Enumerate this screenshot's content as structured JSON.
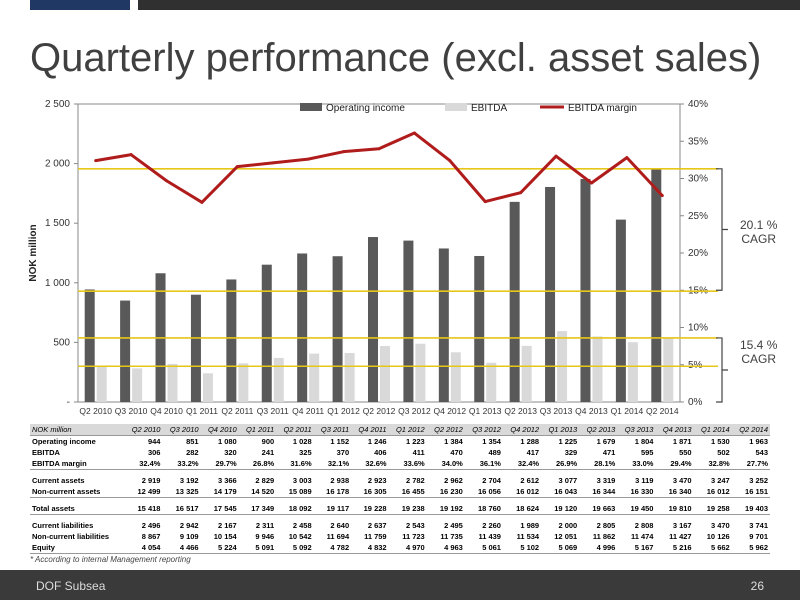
{
  "slide": {
    "title": "Quarterly performance (excl. asset sales)",
    "footnote": "* According to internal Management reporting",
    "company": "DOF Subsea",
    "page_number": "26"
  },
  "colors": {
    "operating_income": "#595959",
    "ebitda": "#d9d9d9",
    "ebitda_margin": "#b01c1c",
    "ref_line": "#e6c619"
  },
  "annotations": {
    "cagr_ebitda": [
      "20.1 %",
      "CAGR"
    ],
    "cagr_op": [
      "15.4 %",
      "CAGR"
    ]
  },
  "chart_data": {
    "type": "bar",
    "ylabel": "NOK million",
    "ylim": [
      0,
      2500
    ],
    "y2lim": [
      0,
      40
    ],
    "yticks": [
      "-",
      "500",
      "1 000",
      "1 500",
      "2 000",
      "2 500"
    ],
    "y2ticks": [
      "0%",
      "5%",
      "10%",
      "15%",
      "20%",
      "25%",
      "30%",
      "35%",
      "40%"
    ],
    "legend_position": "top",
    "categories": [
      "Q2 2010",
      "Q3 2010",
      "Q4 2010",
      "Q1 2011",
      "Q2 2011",
      "Q3 2011",
      "Q4 2011",
      "Q1 2012",
      "Q2 2012",
      "Q3 2012",
      "Q4 2012",
      "Q1 2013",
      "Q2 2013",
      "Q3 2013",
      "Q4 2013",
      "Q1 2014",
      "Q2 2014"
    ],
    "series": [
      {
        "name": "Operating income",
        "type": "bar",
        "values": [
          944,
          851,
          1080,
          900,
          1028,
          1152,
          1246,
          1223,
          1384,
          1354,
          1288,
          1225,
          1679,
          1804,
          1871,
          1530,
          1963
        ]
      },
      {
        "name": "EBITDA",
        "type": "bar",
        "values": [
          306,
          282,
          320,
          241,
          325,
          370,
          406,
          411,
          470,
          489,
          417,
          329,
          471,
          595,
          550,
          502,
          543
        ]
      },
      {
        "name": "EBITDA margin",
        "type": "line",
        "axis": "right",
        "values": [
          32.4,
          33.2,
          29.7,
          26.8,
          31.6,
          32.1,
          32.6,
          33.6,
          34.0,
          36.1,
          32.4,
          26.9,
          28.1,
          33.0,
          29.4,
          32.8,
          27.7
        ]
      }
    ],
    "reference_lines": [
      {
        "axis": "left",
        "value": 930
      },
      {
        "axis": "left",
        "value": 300
      },
      {
        "axis": "right",
        "value": 31.3
      },
      {
        "axis": "right",
        "value": 8.6
      }
    ]
  },
  "table": {
    "header": [
      "NOK million",
      "Q2 2010",
      "Q3 2010",
      "Q4 2010",
      "Q1 2011",
      "Q2 2011",
      "Q3 2011",
      "Q4 2011",
      "Q1 2012",
      "Q2 2012",
      "Q3 2012",
      "Q4 2012",
      "Q1 2013",
      "Q2 2013",
      "Q3 2013",
      "Q4 2013",
      "Q1 2014",
      "Q2 2014"
    ],
    "rows": [
      {
        "label": "Operating income",
        "bold": true,
        "values": [
          "944",
          "851",
          "1 080",
          "900",
          "1 028",
          "1 152",
          "1 246",
          "1 223",
          "1 384",
          "1 354",
          "1 288",
          "1 225",
          "1 679",
          "1 804",
          "1 871",
          "1 530",
          "1 963"
        ]
      },
      {
        "label": "EBITDA",
        "bold": true,
        "values": [
          "306",
          "282",
          "320",
          "241",
          "325",
          "370",
          "406",
          "411",
          "470",
          "489",
          "417",
          "329",
          "471",
          "595",
          "550",
          "502",
          "543"
        ]
      },
      {
        "label": "EBITDA margin",
        "bold": true,
        "rowline": true,
        "values": [
          "32.4%",
          "33.2%",
          "29.7%",
          "26.8%",
          "31.6%",
          "32.1%",
          "32.6%",
          "33.6%",
          "34.0%",
          "36.1%",
          "32.4%",
          "26.9%",
          "28.1%",
          "33.0%",
          "29.4%",
          "32.8%",
          "27.7%"
        ]
      },
      {
        "sep": true
      },
      {
        "label": "Current assets",
        "bold": true,
        "values": [
          "2 919",
          "3 192",
          "3 366",
          "2 829",
          "3 003",
          "2 938",
          "2 923",
          "2 782",
          "2 962",
          "2 704",
          "2 612",
          "3 077",
          "3 319",
          "3 119",
          "3 470",
          "3 247",
          "3 252"
        ]
      },
      {
        "label": "Non-current assets",
        "bold": true,
        "rowline": true,
        "values": [
          "12 499",
          "13 325",
          "14 179",
          "14 520",
          "15 089",
          "16 178",
          "16 305",
          "16 455",
          "16 230",
          "16 056",
          "16 012",
          "16 043",
          "16 344",
          "16 330",
          "16 340",
          "16 012",
          "16 151"
        ]
      },
      {
        "sep": true
      },
      {
        "label": "Total assets",
        "bold": true,
        "rowline": true,
        "values": [
          "15 418",
          "16 517",
          "17 545",
          "17 349",
          "18 092",
          "19 117",
          "19 228",
          "19 238",
          "19 192",
          "18 760",
          "18 624",
          "19 120",
          "19 663",
          "19 450",
          "19 810",
          "19 258",
          "19 403"
        ]
      },
      {
        "sep": true
      },
      {
        "label": "Current liabilities",
        "bold": true,
        "values": [
          "2 496",
          "2 942",
          "2 167",
          "2 311",
          "2 458",
          "2 640",
          "2 637",
          "2 543",
          "2 495",
          "2 260",
          "1 989",
          "2 000",
          "2 805",
          "2 808",
          "3 167",
          "3 470",
          "3 741"
        ]
      },
      {
        "label": "Non-current liabilities",
        "bold": true,
        "values": [
          "8 867",
          "9 109",
          "10 154",
          "9 946",
          "10 542",
          "11 694",
          "11 759",
          "11 723",
          "11 735",
          "11 439",
          "11 534",
          "12 051",
          "11 862",
          "11 474",
          "11 427",
          "10 126",
          "9 701"
        ]
      },
      {
        "label": "Equity",
        "bold": true,
        "rowline": true,
        "values": [
          "4 054",
          "4 466",
          "5 224",
          "5 091",
          "5 092",
          "4 782",
          "4 832",
          "4 970",
          "4 963",
          "5 061",
          "5 102",
          "5 069",
          "4 996",
          "5 167",
          "5 216",
          "5 662",
          "5 962"
        ]
      }
    ]
  }
}
